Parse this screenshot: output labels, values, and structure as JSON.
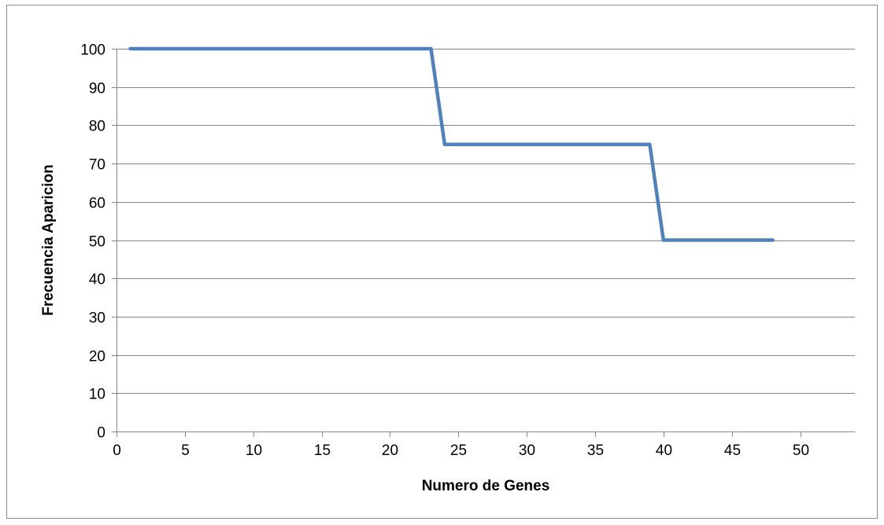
{
  "chart_data": {
    "type": "line",
    "title": "",
    "xlabel": "Numero de Genes",
    "ylabel": "Frecuencia Aparicion",
    "xlim": [
      0,
      54
    ],
    "ylim": [
      0,
      100
    ],
    "x_ticks": [
      0,
      5,
      10,
      15,
      20,
      25,
      30,
      35,
      40,
      45,
      50
    ],
    "x_tick_labels": [
      "0",
      "5",
      "10",
      "15",
      "20",
      "25",
      "30",
      "35",
      "40",
      "45",
      "50"
    ],
    "y_ticks": [
      0,
      10,
      20,
      30,
      40,
      50,
      60,
      70,
      80,
      90,
      100
    ],
    "y_tick_labels": [
      "0",
      "10",
      "20",
      "30",
      "40",
      "50",
      "60",
      "70",
      "80",
      "90",
      "100"
    ],
    "grid": "horizontal",
    "legend": "none",
    "series": [
      {
        "color": "#4f81bd",
        "points": [
          [
            1,
            100
          ],
          [
            23,
            100
          ],
          [
            24,
            75
          ],
          [
            39,
            75
          ],
          [
            40,
            50
          ],
          [
            48,
            50
          ]
        ]
      }
    ]
  }
}
